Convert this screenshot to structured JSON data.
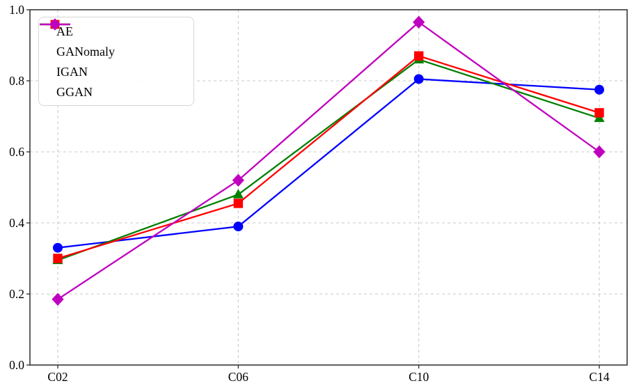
{
  "figure": {
    "background": "#ffffff",
    "axis_color": "#2b2b2b",
    "grid_color": "#c9c9c9",
    "tick_label_color": "#000000"
  },
  "chart_data": {
    "type": "line",
    "title": "",
    "xlabel": "",
    "ylabel": "",
    "categories": [
      "C02",
      "C06",
      "C10",
      "C14"
    ],
    "ylim": [
      0.0,
      1.0
    ],
    "y_tick_step": 0.2,
    "y_tick_labels": [
      "0.0",
      "0.2",
      "0.4",
      "0.6",
      "0.8",
      "1.0"
    ],
    "grid": true,
    "grid_style": "dashed",
    "legend_position": "upper left",
    "series": [
      {
        "name": "AE",
        "color": "#0000ff",
        "marker": "circle",
        "values": [
          0.33,
          0.39,
          0.805,
          0.775
        ]
      },
      {
        "name": "GANomaly",
        "color": "#008000",
        "marker": "triangle",
        "values": [
          0.295,
          0.48,
          0.86,
          0.695
        ]
      },
      {
        "name": "IGAN",
        "color": "#ff0000",
        "marker": "square",
        "values": [
          0.3,
          0.455,
          0.87,
          0.71
        ]
      },
      {
        "name": "GGAN",
        "color": "#bf00bf",
        "marker": "diamond",
        "values": [
          0.185,
          0.52,
          0.965,
          0.6
        ]
      }
    ]
  }
}
